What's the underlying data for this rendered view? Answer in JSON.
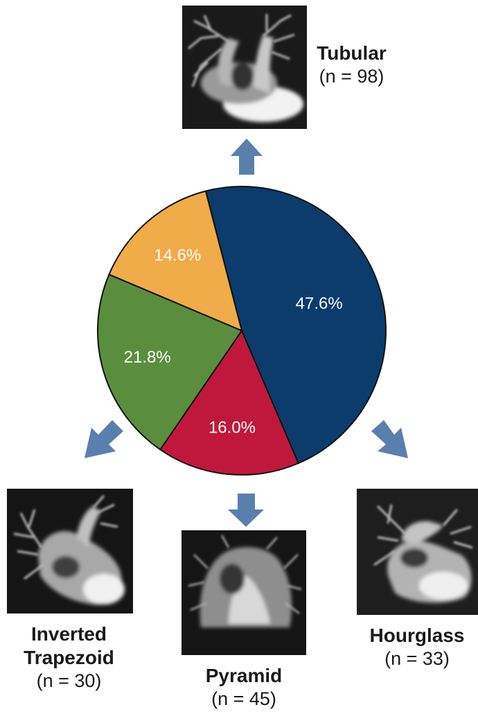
{
  "chart_data": {
    "type": "pie",
    "slices": [
      {
        "name": "Tubular",
        "value": 47.6,
        "label": "47.6%",
        "color": "#0b3c6b"
      },
      {
        "name": "Hourglass",
        "value": 16.0,
        "label": "16.0%",
        "color": "#c0183c"
      },
      {
        "name": "Pyramid",
        "value": 21.8,
        "label": "21.8%",
        "color": "#5a8e3e"
      },
      {
        "name": "Inverted Trapezoid",
        "value": 14.6,
        "label": "14.6%",
        "color": "#f0ac48"
      }
    ]
  },
  "categories": {
    "tubular": {
      "name": "Tubular",
      "count": "(n = 98)"
    },
    "inverted_trapezoid": {
      "name_line1": "Inverted",
      "name_line2": "Trapezoid",
      "count": "(n = 30)"
    },
    "pyramid": {
      "name": "Pyramid",
      "count": "(n = 45)"
    },
    "hourglass": {
      "name": "Hourglass",
      "count": "(n = 33)"
    }
  },
  "colors": {
    "arrow": "#5b7fad",
    "image_bg": "#111111"
  }
}
